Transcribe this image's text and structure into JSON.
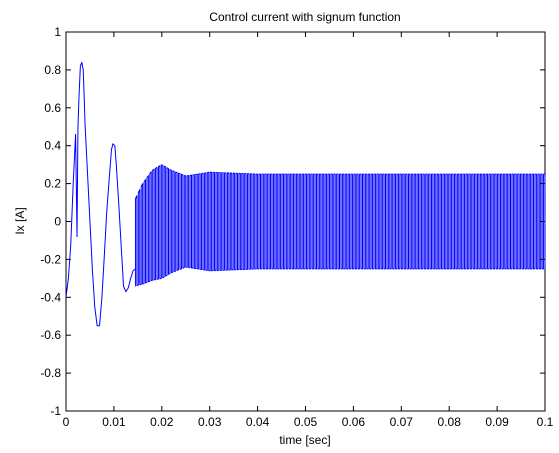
{
  "chart_data": {
    "type": "line",
    "title": "Control current with signum function",
    "xlabel": "time [sec]",
    "ylabel": "Ix [A]",
    "xlim": [
      0,
      0.1
    ],
    "ylim": [
      -1,
      1
    ],
    "xticks": [
      0,
      0.01,
      0.02,
      0.03,
      0.04,
      0.05,
      0.06,
      0.07,
      0.08,
      0.09,
      0.1
    ],
    "xtick_labels": [
      "0",
      "0.01",
      "0.02",
      "0.03",
      "0.04",
      "0.05",
      "0.06",
      "0.07",
      "0.08",
      "0.09",
      "0.1"
    ],
    "yticks": [
      -1,
      -0.8,
      -0.6,
      -0.4,
      -0.2,
      0,
      0.2,
      0.4,
      0.6,
      0.8,
      1
    ],
    "ytick_labels": [
      "-1",
      "-0.8",
      "-0.6",
      "-0.4",
      "-0.2",
      "0",
      "0.2",
      "0.4",
      "0.6",
      "0.8",
      "1"
    ],
    "grid": false,
    "line_color": "#0000ff",
    "series": [
      {
        "x": [
          0,
          0.0005,
          0.001,
          0.0015,
          0.002,
          0.0023,
          0.0025,
          0.0027,
          0.003,
          0.0033,
          0.0036,
          0.004,
          0.0045,
          0.005,
          0.0055,
          0.006,
          0.0065,
          0.007,
          0.0075,
          0.008,
          0.0085,
          0.009,
          0.0095,
          0.0098,
          0.0102,
          0.0105,
          0.011,
          0.0115,
          0.0118,
          0.012,
          0.0125,
          0.013,
          0.0135,
          0.014,
          0.0145
        ],
        "y": [
          -0.4,
          -0.3,
          -0.12,
          0.2,
          0.46,
          -0.08,
          0.5,
          0.65,
          0.82,
          0.84,
          0.8,
          0.5,
          0.25,
          0.0,
          -0.25,
          -0.45,
          -0.55,
          -0.55,
          -0.4,
          -0.18,
          0.05,
          0.22,
          0.38,
          0.41,
          0.4,
          0.3,
          0.1,
          -0.12,
          -0.25,
          -0.34,
          -0.37,
          -0.35,
          -0.3,
          -0.26,
          -0.25
        ]
      }
    ],
    "oscillation": {
      "start": 0.0145,
      "end": 0.1,
      "period": 0.0006,
      "envelope": [
        {
          "t": 0.0145,
          "upper": 0.12,
          "lower": -0.34
        },
        {
          "t": 0.016,
          "upper": 0.2,
          "lower": -0.33
        },
        {
          "t": 0.018,
          "upper": 0.27,
          "lower": -0.31
        },
        {
          "t": 0.02,
          "upper": 0.3,
          "lower": -0.3
        },
        {
          "t": 0.022,
          "upper": 0.27,
          "lower": -0.27
        },
        {
          "t": 0.025,
          "upper": 0.24,
          "lower": -0.24
        },
        {
          "t": 0.03,
          "upper": 0.26,
          "lower": -0.26
        },
        {
          "t": 0.04,
          "upper": 0.25,
          "lower": -0.25
        },
        {
          "t": 0.1,
          "upper": 0.25,
          "lower": -0.25
        }
      ]
    }
  }
}
